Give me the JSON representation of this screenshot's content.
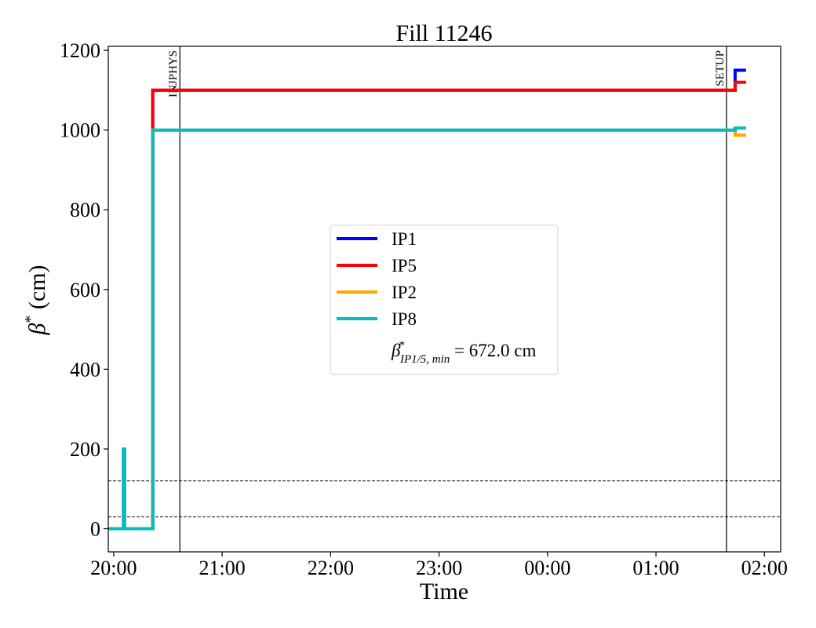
{
  "chart_data": {
    "type": "line",
    "title": "Fill 11246",
    "xlabel": "Time",
    "ylabel_symbol": "β",
    "ylabel_sup": "*",
    "ylabel_unit": " (cm)",
    "x_unit": "hours since 20:00",
    "xlim": [
      -0.05,
      6.15
    ],
    "ylim": [
      -58,
      1210
    ],
    "x_ticks": [
      {
        "value": 0,
        "label": "20:00"
      },
      {
        "value": 1,
        "label": "21:00"
      },
      {
        "value": 2,
        "label": "22:00"
      },
      {
        "value": 3,
        "label": "23:00"
      },
      {
        "value": 4,
        "label": "00:00"
      },
      {
        "value": 5,
        "label": "01:00"
      },
      {
        "value": 6,
        "label": "02:00"
      }
    ],
    "y_ticks": [
      0,
      200,
      400,
      600,
      800,
      1000,
      1200
    ],
    "series": [
      {
        "name": "IP1",
        "color": "#0000ff",
        "x": [
          -0.05,
          0.09,
          0.09,
          0.1,
          0.1,
          0.36,
          0.36,
          5.73,
          5.73,
          5.83
        ],
        "y": [
          0,
          0,
          200,
          200,
          0,
          0,
          1100,
          1100,
          1150,
          1150
        ]
      },
      {
        "name": "IP5",
        "color": "#ff0000",
        "x": [
          -0.05,
          0.09,
          0.09,
          0.1,
          0.1,
          0.36,
          0.36,
          5.73,
          5.73,
          5.83
        ],
        "y": [
          0,
          0,
          200,
          200,
          0,
          0,
          1100,
          1100,
          1120,
          1120
        ]
      },
      {
        "name": "IP2",
        "color": "#ffa500",
        "x": [
          -0.05,
          0.09,
          0.09,
          0.1,
          0.1,
          0.36,
          0.36,
          5.73,
          5.73,
          5.83
        ],
        "y": [
          0,
          0,
          200,
          200,
          0,
          0,
          1000,
          1000,
          987,
          987
        ]
      },
      {
        "name": "IP8",
        "color": "#00bfbf",
        "x": [
          -0.05,
          0.09,
          0.09,
          0.1,
          0.1,
          0.36,
          0.36,
          5.73,
          5.73,
          5.83
        ],
        "y": [
          0,
          0,
          200,
          200,
          0,
          0,
          1000,
          1000,
          1005,
          1005
        ]
      }
    ],
    "hlines": [
      {
        "y": 30,
        "style": "dashed"
      },
      {
        "y": 120,
        "style": "dashed"
      }
    ],
    "vlines": [
      {
        "x": 0.61,
        "label": "INJPHYS"
      },
      {
        "x": 5.65,
        "label": "SETUP"
      }
    ],
    "legend": {
      "placement": "center",
      "entries": [
        "IP1",
        "IP5",
        "IP2",
        "IP8"
      ],
      "extra_symbol": "β",
      "extra_sup": "*",
      "extra_sub": "IP1/5, min",
      "extra_value": " = 672.0 cm"
    }
  }
}
